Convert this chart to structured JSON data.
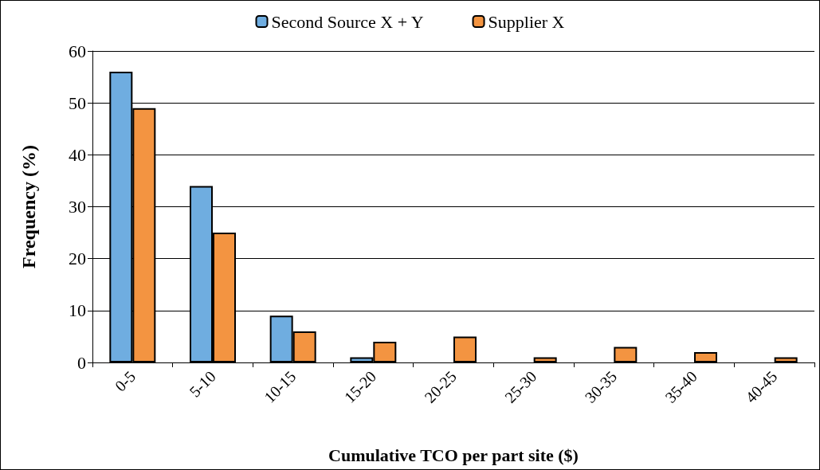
{
  "chart_data": {
    "type": "bar",
    "xlabel": "Cumulative TCO per part site ($)",
    "ylabel": "Frequency (%)",
    "categories": [
      "0-5",
      "5-10",
      "10-15",
      "15-20",
      "20-25",
      "25-30",
      "30-35",
      "35-40",
      "40-45"
    ],
    "series": [
      {
        "name": "Second Source X + Y",
        "color": "#6fade0",
        "values": [
          56,
          34,
          9,
          1,
          null,
          null,
          null,
          null,
          null
        ]
      },
      {
        "name": "Supplier X",
        "color": "#f39441",
        "values": [
          49,
          25,
          6,
          4,
          5,
          1,
          3,
          2,
          1
        ]
      }
    ],
    "ylim": [
      0,
      60
    ],
    "yticks": [
      0,
      10,
      20,
      30,
      40,
      50,
      60
    ],
    "grid": "y",
    "legend": "top"
  }
}
